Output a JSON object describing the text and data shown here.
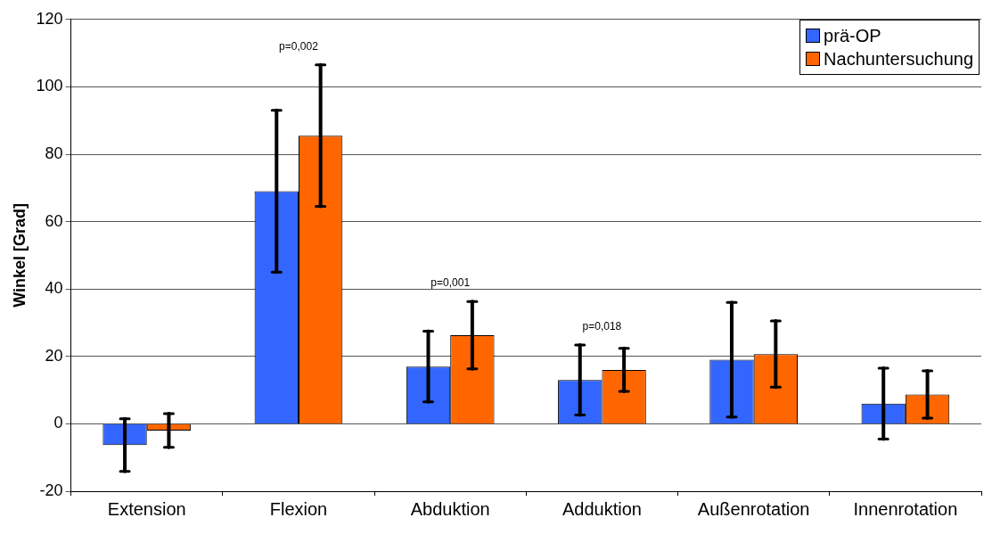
{
  "chart_data": {
    "type": "bar",
    "ylabel": "Winkel [Grad]",
    "categories": [
      "Extension",
      "Flexion",
      "Abduktion",
      "Adduktion",
      "Außenrotation",
      "Innenrotation"
    ],
    "series": [
      {
        "name": "prä-OP",
        "color": "#3366ff",
        "values": [
          -6.3,
          69,
          17,
          13,
          19,
          6
        ],
        "errors": [
          7.8,
          24,
          10.5,
          10.4,
          17,
          10.5
        ]
      },
      {
        "name": "Nachuntersuchung",
        "color": "#ff6600",
        "values": [
          -2,
          85.5,
          26.3,
          16,
          20.7,
          8.7
        ],
        "errors": [
          5,
          21,
          10,
          6.4,
          9.8,
          7
        ]
      }
    ],
    "ylim": [
      -20,
      120
    ],
    "yticks": [
      -20,
      0,
      20,
      40,
      60,
      80,
      100,
      120
    ],
    "grid": "y",
    "legend": "top right",
    "annotations": [
      "p=0,002",
      "p=0,001",
      "p=0,018"
    ]
  }
}
